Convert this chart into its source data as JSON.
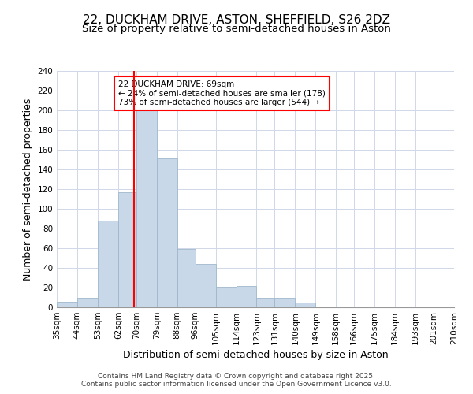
{
  "title": "22, DUCKHAM DRIVE, ASTON, SHEFFIELD, S26 2DZ",
  "subtitle": "Size of property relative to semi-detached houses in Aston",
  "xlabel": "Distribution of semi-detached houses by size in Aston",
  "ylabel": "Number of semi-detached properties",
  "bin_labels": [
    "35sqm",
    "44sqm",
    "53sqm",
    "62sqm",
    "70sqm",
    "79sqm",
    "88sqm",
    "96sqm",
    "105sqm",
    "114sqm",
    "123sqm",
    "131sqm",
    "140sqm",
    "149sqm",
    "158sqm",
    "166sqm",
    "175sqm",
    "184sqm",
    "193sqm",
    "201sqm",
    "210sqm"
  ],
  "bin_edges": [
    35,
    44,
    53,
    62,
    70,
    79,
    88,
    96,
    105,
    114,
    123,
    131,
    140,
    149,
    158,
    166,
    175,
    184,
    193,
    201,
    210
  ],
  "bar_heights": [
    6,
    10,
    88,
    117,
    201,
    151,
    59,
    44,
    21,
    22,
    10,
    10,
    5,
    0,
    0,
    0,
    0,
    0,
    0,
    0
  ],
  "bar_color": "#c8d8e8",
  "bar_edge_color": "#a0b8cc",
  "grid_color": "#d0d8e8",
  "reference_line_x": 69,
  "reference_line_color": "red",
  "annotation_box_text": "22 DUCKHAM DRIVE: 69sqm\n← 24% of semi-detached houses are smaller (178)\n73% of semi-detached houses are larger (544) →",
  "ylim": [
    0,
    240
  ],
  "yticks": [
    0,
    20,
    40,
    60,
    80,
    100,
    120,
    140,
    160,
    180,
    200,
    220,
    240
  ],
  "footer_line1": "Contains HM Land Registry data © Crown copyright and database right 2025.",
  "footer_line2": "Contains public sector information licensed under the Open Government Licence v3.0.",
  "title_fontsize": 11,
  "subtitle_fontsize": 9.5,
  "axis_label_fontsize": 9,
  "tick_fontsize": 7.5,
  "annotation_fontsize": 7.5,
  "footer_fontsize": 6.5
}
